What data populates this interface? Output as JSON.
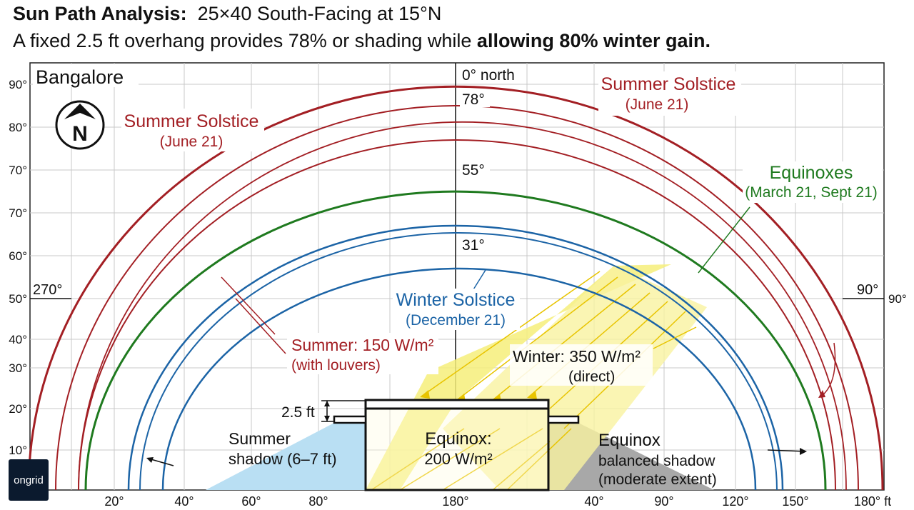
{
  "header": {
    "title_bold": "Sun Path Analysis:",
    "title_rest": "25×40 South-Facing at 15°N",
    "subtitle_start": "A fixed 2.5 ft overhang provides 78% or shading while",
    "subtitle_bold": "allowing 80% winter gain."
  },
  "location": "Bangalore",
  "compass_letter": "N",
  "north_label": "0° north",
  "left_axis_ticks": [
    "90°",
    "80°",
    "70°",
    "70°",
    "60°",
    "50°",
    "40°",
    "30°",
    "20°",
    "10°"
  ],
  "left_axis_unit": "ft",
  "right_axis_tick": "90°",
  "bottom_axis_ticks": [
    "20°",
    "40°",
    "60°",
    "80°",
    "180°",
    "40°",
    "90°",
    "120°",
    "150°",
    "180° ft"
  ],
  "compass_marks": {
    "west": "270°",
    "east": "90°"
  },
  "altitude_labels": {
    "summer": "78°",
    "equinox": "55°",
    "winter": "31°"
  },
  "curves": {
    "summer_solstice": {
      "name": "Summer Solstice",
      "date": "(June 21)",
      "color": "#a31f24"
    },
    "equinoxes": {
      "name": "Equinoxes",
      "date": "(March 21, Sept 21)",
      "color": "#1f7a1f"
    },
    "winter_solstice": {
      "name": "Winter Solstice",
      "date": "(December 21)",
      "color": "#1c64a6"
    }
  },
  "annotations": {
    "summer_gain": {
      "line1": "Summer: 150 W/m²",
      "line2": "(with louvers)"
    },
    "winter_gain": {
      "line1": "Winter: 350 W/m²",
      "line2": "(direct)"
    },
    "equinox_gain": {
      "line1": "Equinox:",
      "line2": "200 W/m²"
    },
    "summer_shadow": {
      "line1": "Summer",
      "line2": "shadow (6–7 ft)"
    },
    "equinox_shadow": {
      "line1": "Equinox",
      "line2": "balanced shadow",
      "line3": "(moderate extent)"
    },
    "overhang": "2.5 ft"
  },
  "colors": {
    "shadow_blue": "#b9dff3",
    "shadow_gray": "#a8a8a8",
    "sun_yellow": "#f6ee7a"
  },
  "brand": "ongrid"
}
